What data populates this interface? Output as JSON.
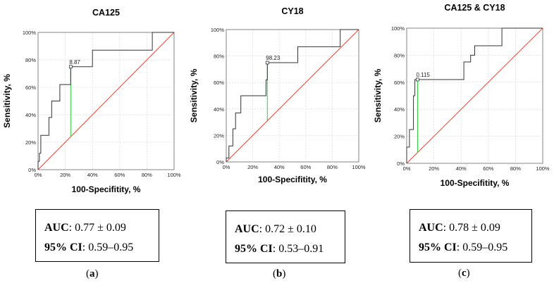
{
  "axis_tick_labels": [
    "0%",
    "20%",
    "40%",
    "60%",
    "80%",
    "100%"
  ],
  "chart_data": [
    {
      "type": "line",
      "title": "CA125",
      "xlabel": "100-Specifitity, %",
      "ylabel": "Sensitivity, %",
      "xlim": [
        0,
        100
      ],
      "ylim": [
        0,
        100
      ],
      "grid": true,
      "series": [
        {
          "name": "ROC",
          "x": [
            0,
            0,
            1,
            1,
            2,
            2,
            3,
            3,
            8,
            8,
            10,
            10,
            13,
            13,
            16,
            16,
            18,
            18,
            24,
            24,
            34,
            34,
            40,
            40,
            63,
            63,
            76,
            76,
            84,
            84,
            100
          ],
          "y": [
            0,
            6,
            6,
            12,
            12,
            25,
            25,
            25,
            25,
            38,
            38,
            50,
            50,
            50,
            50,
            62,
            62,
            62,
            62,
            75,
            75,
            75,
            75,
            87,
            87,
            87,
            87,
            87,
            87,
            100,
            100
          ]
        },
        {
          "name": "Reference",
          "x": [
            0,
            100
          ],
          "y": [
            0,
            100
          ]
        }
      ],
      "cutoff": {
        "label": "8.87",
        "x": 24,
        "y": 75
      },
      "auc_label": "AUC",
      "auc_text": ": 0.77 ± 0.09",
      "ci_label": "95% CI",
      "ci_text": ": 0.59–0.95",
      "panel_label": "a"
    },
    {
      "type": "line",
      "title": "CY18",
      "xlabel": "100-Specifitity, %",
      "ylabel": "Sensitivity, %",
      "xlim": [
        0,
        100
      ],
      "ylim": [
        0,
        100
      ],
      "grid": true,
      "series": [
        {
          "name": "ROC",
          "x": [
            0,
            0,
            2,
            2,
            5,
            5,
            7,
            7,
            11,
            11,
            16,
            16,
            24,
            24,
            30,
            30,
            30,
            31,
            31,
            54,
            54,
            86,
            86,
            100
          ],
          "y": [
            0,
            3,
            3,
            12,
            12,
            25,
            25,
            37,
            37,
            50,
            50,
            50,
            50,
            50,
            50,
            60,
            62,
            62,
            75,
            75,
            87,
            87,
            100,
            100
          ]
        },
        {
          "name": "Reference",
          "x": [
            0,
            100
          ],
          "y": [
            0,
            100
          ]
        }
      ],
      "cutoff": {
        "label": "98.23",
        "x": 31,
        "y": 75
      },
      "auc_label": "AUC",
      "auc_text": ": 0.72 ± 0.10",
      "ci_label": "95% CI",
      "ci_text": ": 0.53–0.91",
      "panel_label": "b"
    },
    {
      "type": "line",
      "title": "CA125 & CY18",
      "xlabel": "100-Specifitity, %",
      "ylabel": "Sensitivity, %",
      "xlim": [
        0,
        100
      ],
      "ylim": [
        0,
        100
      ],
      "grid": true,
      "series": [
        {
          "name": "ROC",
          "x": [
            0,
            0,
            2,
            2,
            5,
            5,
            6,
            6,
            8,
            8,
            42,
            42,
            47,
            47,
            50,
            50,
            52,
            52,
            62,
            62,
            70,
            70,
            100
          ],
          "y": [
            0,
            12,
            12,
            25,
            25,
            50,
            50,
            62,
            62,
            62,
            62,
            75,
            75,
            80,
            80,
            87,
            87,
            87,
            87,
            87,
            87,
            100,
            100
          ]
        },
        {
          "name": "Reference",
          "x": [
            0,
            100
          ],
          "y": [
            0,
            100
          ]
        }
      ],
      "cutoff": {
        "label": "0.115",
        "x": 8,
        "y": 62
      },
      "auc_label": "AUC",
      "auc_text": ": 0.78 ± 0.09",
      "ci_label": "95% CI",
      "ci_text": ": 0.59–0.95",
      "panel_label": "c"
    }
  ],
  "colors": {
    "roc": "#333333",
    "reference": "#e8472e",
    "cutoff": "#2ecc40",
    "grid": "#dddddd",
    "frame": "#666666"
  }
}
